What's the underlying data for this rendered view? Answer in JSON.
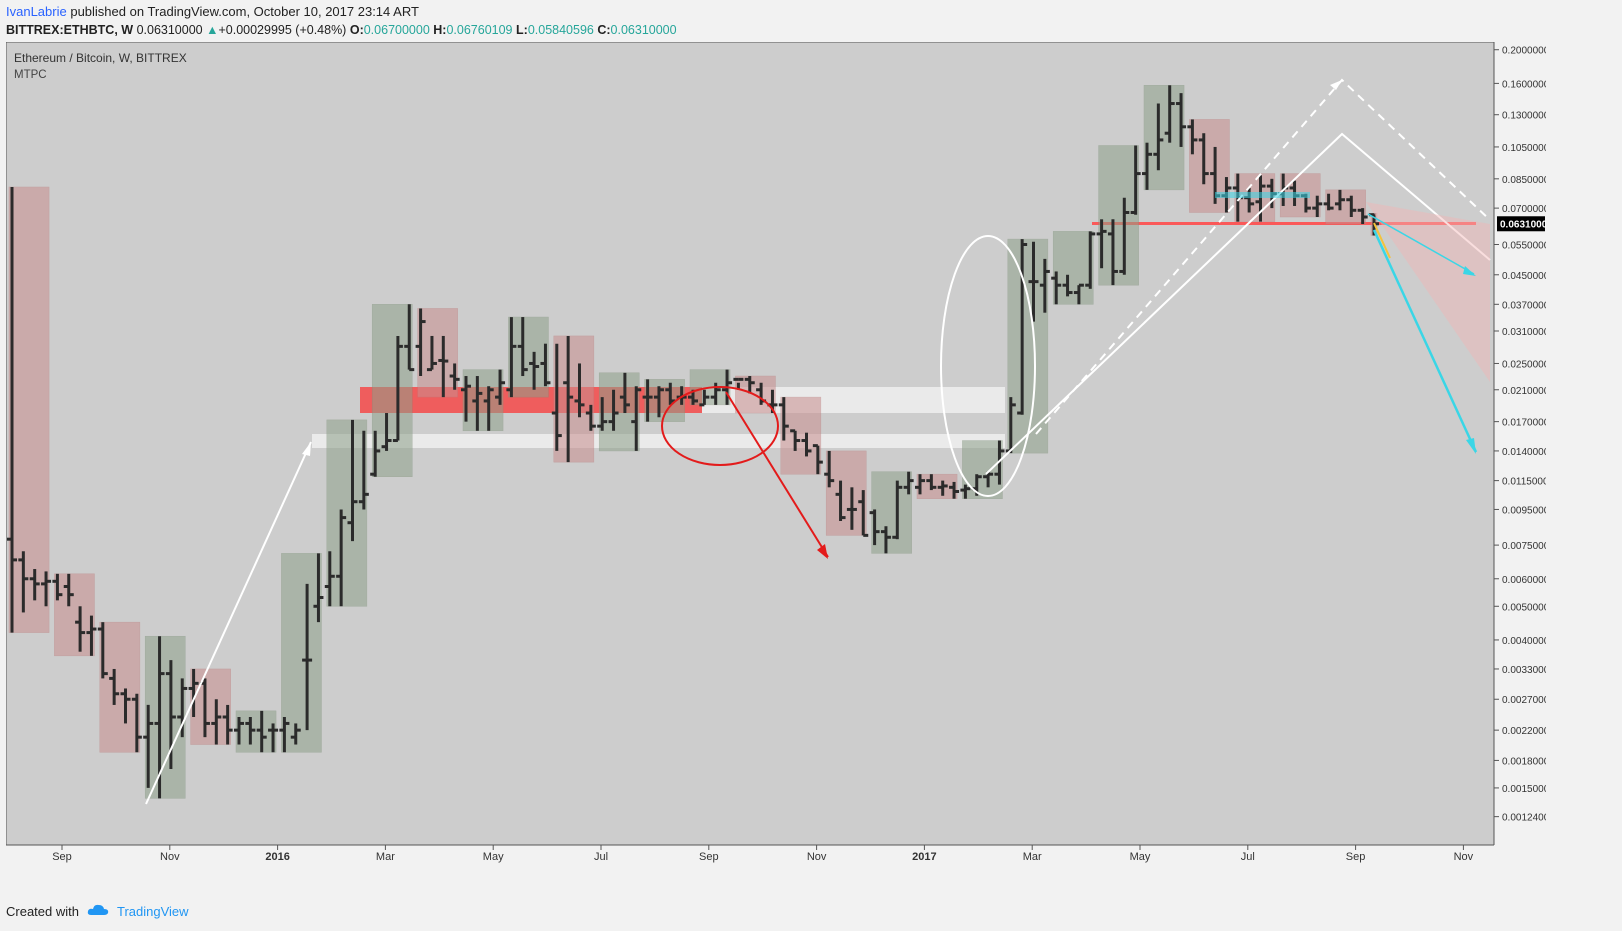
{
  "header": {
    "author": "IvanLabrie",
    "published_text": "published on TradingView.com, October 10, 2017 23:14 ART"
  },
  "symbol_line": {
    "symbol": "BITTREX:ETHBTC, W",
    "last": "0.06310000",
    "change": "+0.00029995 (+0.48%)",
    "open_label": "O:",
    "open": "0.06700000",
    "high_label": "H:",
    "high": "0.06760109",
    "low_label": "L:",
    "low": "0.05840596",
    "close_label": "C:",
    "close": "0.06310000"
  },
  "legend": {
    "title": "Ethereum / Bitcoin, W, BITTREX",
    "indicator": "MTPC"
  },
  "footer": {
    "created_with": "Created with",
    "brand": "TradingView"
  },
  "chart_data": {
    "type": "ohlc",
    "title": "Ethereum / Bitcoin, W, BITTREX",
    "scale": "log",
    "grid": false,
    "colors": {
      "background": "#cdcdcd",
      "bar": "#2b2b2b",
      "bull_box": "#8fa08a",
      "bear_box": "#c98f8f",
      "arrow_up": "#ffffff",
      "arrow_down_red": "#e31b1b",
      "arrow_cyan": "#3ad6e6",
      "arrow_yellow": "#f3c33c",
      "last_price_tag": "#000000"
    },
    "ylim": [
      0.00112,
      0.205
    ],
    "y_ticks": [
      "0.20000000",
      "0.16000000",
      "0.13000000",
      "0.10500000",
      "0.08500000",
      "0.07000000",
      "0.05500000",
      "0.04500000",
      "0.03700000",
      "0.03100000",
      "0.02500000",
      "0.02100000",
      "0.01700000",
      "0.01400000",
      "0.01150000",
      "0.00950000",
      "0.00750000",
      "0.00600000",
      "0.00500000",
      "0.00400000",
      "0.00330000",
      "0.00270000",
      "0.00220000",
      "0.00180000",
      "0.00150000",
      "0.00124000"
    ],
    "x_ticks": [
      {
        "label": "Sep",
        "bold": false
      },
      {
        "label": "Nov",
        "bold": false
      },
      {
        "label": "2016",
        "bold": true
      },
      {
        "label": "Mar",
        "bold": false
      },
      {
        "label": "May",
        "bold": false
      },
      {
        "label": "Jul",
        "bold": false
      },
      {
        "label": "Sep",
        "bold": false
      },
      {
        "label": "Nov",
        "bold": false
      },
      {
        "label": "2017",
        "bold": true
      },
      {
        "label": "Mar",
        "bold": false
      },
      {
        "label": "May",
        "bold": false
      },
      {
        "label": "Jul",
        "bold": false
      },
      {
        "label": "Sep",
        "bold": false
      },
      {
        "label": "Nov",
        "bold": false
      }
    ],
    "last_price": "0.06310000",
    "series": [
      {
        "values": [
          [
            0.0078,
            0.0805,
            0.0042,
            0.0068
          ],
          [
            0.0068,
            0.0072,
            0.0048,
            0.006
          ],
          [
            0.006,
            0.0064,
            0.0052,
            0.0058
          ],
          [
            0.0058,
            0.0063,
            0.005,
            0.0059
          ],
          [
            0.0059,
            0.0062,
            0.0052,
            0.0054
          ],
          [
            0.0057,
            0.0062,
            0.005,
            0.0054
          ],
          [
            0.0045,
            0.005,
            0.0037,
            0.0042
          ],
          [
            0.0042,
            0.0047,
            0.0036,
            0.0043
          ],
          [
            0.0043,
            0.0045,
            0.0031,
            0.0032
          ],
          [
            0.0031,
            0.0033,
            0.0026,
            0.0028
          ],
          [
            0.0028,
            0.0029,
            0.0023,
            0.0027
          ],
          [
            0.0027,
            0.0028,
            0.0019,
            0.0021
          ],
          [
            0.0021,
            0.0026,
            0.0015,
            0.0023
          ],
          [
            0.0023,
            0.0041,
            0.0014,
            0.0032
          ],
          [
            0.0032,
            0.0035,
            0.0017,
            0.0024
          ],
          [
            0.0024,
            0.0031,
            0.0021,
            0.0029
          ],
          [
            0.0029,
            0.0033,
            0.0024,
            0.003
          ],
          [
            0.003,
            0.0031,
            0.0021,
            0.0023
          ],
          [
            0.0023,
            0.0027,
            0.002,
            0.0024
          ],
          [
            0.0024,
            0.0026,
            0.002,
            0.0022
          ],
          [
            0.0022,
            0.0024,
            0.002,
            0.0023
          ],
          [
            0.0023,
            0.0024,
            0.002,
            0.0022
          ],
          [
            0.0022,
            0.0025,
            0.0019,
            0.0021
          ],
          [
            0.0022,
            0.0023,
            0.0019,
            0.0022
          ],
          [
            0.0022,
            0.0024,
            0.0019,
            0.0023
          ],
          [
            0.0021,
            0.0023,
            0.002,
            0.0022
          ],
          [
            0.0035,
            0.0058,
            0.0022,
            0.0035
          ],
          [
            0.005,
            0.0071,
            0.0045,
            0.0053
          ],
          [
            0.0057,
            0.0072,
            0.005,
            0.0061
          ],
          [
            0.0061,
            0.0095,
            0.005,
            0.009
          ],
          [
            0.0087,
            0.0172,
            0.0077,
            0.01
          ],
          [
            0.01,
            0.016,
            0.0095,
            0.0105
          ],
          [
            0.012,
            0.016,
            0.0118,
            0.014
          ],
          [
            0.0144,
            0.018,
            0.014,
            0.015
          ],
          [
            0.015,
            0.03,
            0.015,
            0.028
          ],
          [
            0.028,
            0.037,
            0.024,
            0.024
          ],
          [
            0.028,
            0.036,
            0.023,
            0.033
          ],
          [
            0.024,
            0.03,
            0.024,
            0.025
          ],
          [
            0.0255,
            0.03,
            0.02,
            0.0254
          ],
          [
            0.023,
            0.025,
            0.021,
            0.0225
          ],
          [
            0.021,
            0.023,
            0.017,
            0.0215
          ],
          [
            0.0195,
            0.023,
            0.016,
            0.0205
          ],
          [
            0.0195,
            0.0215,
            0.016,
            0.021
          ],
          [
            0.02,
            0.024,
            0.019,
            0.022
          ],
          [
            0.021,
            0.034,
            0.02,
            0.028
          ],
          [
            0.028,
            0.034,
            0.023,
            0.024
          ],
          [
            0.025,
            0.027,
            0.021,
            0.0245
          ],
          [
            0.025,
            0.0285,
            0.0215,
            0.022
          ],
          [
            0.018,
            0.0285,
            0.014,
            0.0155
          ],
          [
            0.022,
            0.03,
            0.013,
            0.02
          ],
          [
            0.0195,
            0.025,
            0.0175,
            0.019
          ],
          [
            0.018,
            0.019,
            0.016,
            0.0165
          ],
          [
            0.0165,
            0.02,
            0.016,
            0.017
          ],
          [
            0.017,
            0.021,
            0.016,
            0.018
          ],
          [
            0.02,
            0.0235,
            0.018,
            0.019
          ],
          [
            0.017,
            0.0215,
            0.014,
            0.021
          ],
          [
            0.02,
            0.0225,
            0.017,
            0.02
          ],
          [
            0.02,
            0.0215,
            0.0175,
            0.021
          ],
          [
            0.021,
            0.022,
            0.019,
            0.0195
          ],
          [
            0.02,
            0.0215,
            0.019,
            0.02
          ],
          [
            0.02,
            0.021,
            0.019,
            0.0195
          ],
          [
            0.019,
            0.021,
            0.019,
            0.02
          ],
          [
            0.02,
            0.022,
            0.019,
            0.021
          ],
          [
            0.021,
            0.024,
            0.019,
            0.022
          ],
          [
            0.0225,
            0.022,
            0.021,
            0.0225
          ],
          [
            0.0225,
            0.023,
            0.0205,
            0.022
          ],
          [
            0.021,
            0.022,
            0.019,
            0.0195
          ],
          [
            0.019,
            0.021,
            0.018,
            0.019
          ],
          [
            0.019,
            0.02,
            0.015,
            0.0165
          ],
          [
            0.016,
            0.016,
            0.014,
            0.015
          ],
          [
            0.015,
            0.0158,
            0.0135,
            0.014
          ],
          [
            0.0145,
            0.0145,
            0.012,
            0.013
          ],
          [
            0.012,
            0.014,
            0.011,
            0.0115
          ],
          [
            0.0105,
            0.0115,
            0.0088,
            0.009
          ],
          [
            0.0095,
            0.011,
            0.0083,
            0.0095
          ],
          [
            0.01,
            0.0108,
            0.008,
            0.008
          ],
          [
            0.0093,
            0.0095,
            0.0075,
            0.0082
          ],
          [
            0.0082,
            0.0085,
            0.0071,
            0.0079
          ],
          [
            0.0079,
            0.0115,
            0.0078,
            0.011
          ],
          [
            0.011,
            0.0122,
            0.0105,
            0.0115
          ],
          [
            0.011,
            0.012,
            0.0105,
            0.0115
          ],
          [
            0.0115,
            0.012,
            0.0108,
            0.011
          ],
          [
            0.011,
            0.0115,
            0.0104,
            0.0111
          ],
          [
            0.011,
            0.0114,
            0.0102,
            0.0107
          ],
          [
            0.0108,
            0.0112,
            0.0102,
            0.0109
          ],
          [
            0.0109,
            0.012,
            0.0104,
            0.0118
          ],
          [
            0.0118,
            0.0122,
            0.011,
            0.012
          ],
          [
            0.012,
            0.015,
            0.0112,
            0.014
          ],
          [
            0.014,
            0.02,
            0.0138,
            0.019
          ],
          [
            0.018,
            0.057,
            0.0178,
            0.055
          ],
          [
            0.043,
            0.056,
            0.033,
            0.043
          ],
          [
            0.042,
            0.05,
            0.035,
            0.046
          ],
          [
            0.044,
            0.046,
            0.037,
            0.042
          ],
          [
            0.042,
            0.045,
            0.039,
            0.04
          ],
          [
            0.04,
            0.042,
            0.037,
            0.042
          ],
          [
            0.042,
            0.06,
            0.041,
            0.059
          ],
          [
            0.059,
            0.065,
            0.047,
            0.06
          ],
          [
            0.059,
            0.065,
            0.042,
            0.046
          ],
          [
            0.046,
            0.075,
            0.045,
            0.068
          ],
          [
            0.068,
            0.106,
            0.067,
            0.088
          ],
          [
            0.088,
            0.108,
            0.079,
            0.1
          ],
          [
            0.1,
            0.14,
            0.09,
            0.11
          ],
          [
            0.115,
            0.158,
            0.108,
            0.14
          ],
          [
            0.14,
            0.15,
            0.105,
            0.12
          ],
          [
            0.12,
            0.126,
            0.1,
            0.11
          ],
          [
            0.11,
            0.115,
            0.082,
            0.088
          ],
          [
            0.088,
            0.105,
            0.072,
            0.076
          ],
          [
            0.076,
            0.086,
            0.068,
            0.08
          ],
          [
            0.08,
            0.088,
            0.064,
            0.075
          ],
          [
            0.075,
            0.08,
            0.068,
            0.072
          ],
          [
            0.073,
            0.087,
            0.064,
            0.081
          ],
          [
            0.081,
            0.085,
            0.07,
            0.077
          ],
          [
            0.077,
            0.088,
            0.071,
            0.08
          ],
          [
            0.08,
            0.084,
            0.071,
            0.076
          ],
          [
            0.076,
            0.077,
            0.068,
            0.07
          ],
          [
            0.07,
            0.076,
            0.066,
            0.072
          ],
          [
            0.072,
            0.077,
            0.069,
            0.07
          ],
          [
            0.072,
            0.079,
            0.069,
            0.074
          ],
          [
            0.074,
            0.076,
            0.066,
            0.069
          ],
          [
            0.069,
            0.07,
            0.063,
            0.066
          ],
          [
            0.067,
            0.0676,
            0.0584,
            0.0631
          ]
        ]
      }
    ]
  }
}
